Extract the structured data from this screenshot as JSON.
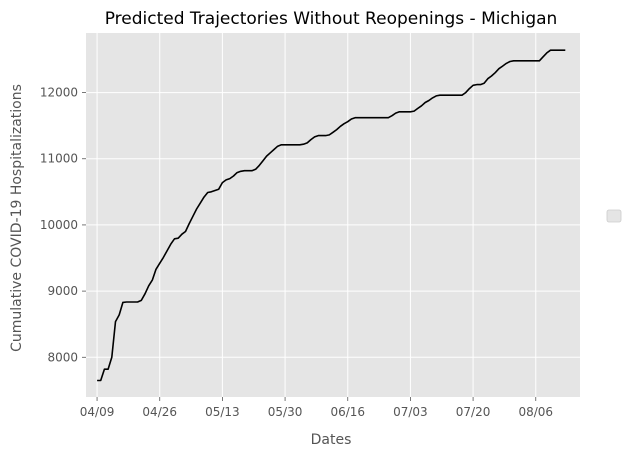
{
  "chart_data": {
    "type": "line",
    "title": "Predicted Trajectories Without Reopenings - Michigan",
    "xlabel": "Dates",
    "ylabel": "Cumulative COVID-19 Hospitalizations",
    "x_start": "2020-04-09",
    "x_ticks": [
      "04/09",
      "04/26",
      "05/13",
      "05/30",
      "06/16",
      "07/03",
      "07/20",
      "08/06"
    ],
    "xlim": [
      "2020-04-06",
      "2020-08-18"
    ],
    "y_ticks": [
      "8000",
      "9000",
      "10000",
      "11000",
      "12000"
    ],
    "ylim": [
      7400,
      12900
    ],
    "grid": true,
    "legend": "right, empty",
    "colors": {
      "background": "#e5e5e5",
      "grid": "#ffffff",
      "line": "#000000"
    },
    "series": [
      {
        "points": [
          [
            "2020-04-09",
            7650
          ],
          [
            "2020-04-10",
            7650
          ],
          [
            "2020-04-11",
            7820
          ],
          [
            "2020-04-12",
            7820
          ],
          [
            "2020-04-13",
            8000
          ],
          [
            "2020-04-14",
            8540
          ],
          [
            "2020-04-15",
            8640
          ],
          [
            "2020-04-16",
            8830
          ],
          [
            "2020-04-17",
            8835
          ],
          [
            "2020-04-18",
            8835
          ],
          [
            "2020-04-19",
            8835
          ],
          [
            "2020-04-20",
            8835
          ],
          [
            "2020-04-21",
            8860
          ],
          [
            "2020-04-22",
            8960
          ],
          [
            "2020-04-23",
            9080
          ],
          [
            "2020-04-24",
            9170
          ],
          [
            "2020-04-25",
            9330
          ],
          [
            "2020-04-26",
            9420
          ],
          [
            "2020-04-27",
            9510
          ],
          [
            "2020-04-28",
            9610
          ],
          [
            "2020-04-29",
            9710
          ],
          [
            "2020-04-30",
            9790
          ],
          [
            "2020-05-01",
            9800
          ],
          [
            "2020-05-02",
            9860
          ],
          [
            "2020-05-03",
            9900
          ],
          [
            "2020-05-04",
            10020
          ],
          [
            "2020-05-05",
            10130
          ],
          [
            "2020-05-06",
            10240
          ],
          [
            "2020-05-07",
            10330
          ],
          [
            "2020-05-08",
            10420
          ],
          [
            "2020-05-09",
            10490
          ],
          [
            "2020-05-10",
            10500
          ],
          [
            "2020-05-11",
            10520
          ],
          [
            "2020-05-12",
            10540
          ],
          [
            "2020-05-13",
            10640
          ],
          [
            "2020-05-14",
            10680
          ],
          [
            "2020-05-15",
            10700
          ],
          [
            "2020-05-16",
            10740
          ],
          [
            "2020-05-17",
            10790
          ],
          [
            "2020-05-18",
            10810
          ],
          [
            "2020-05-19",
            10820
          ],
          [
            "2020-05-20",
            10820
          ],
          [
            "2020-05-21",
            10820
          ],
          [
            "2020-05-22",
            10840
          ],
          [
            "2020-05-23",
            10900
          ],
          [
            "2020-05-24",
            10970
          ],
          [
            "2020-05-25",
            11040
          ],
          [
            "2020-05-26",
            11090
          ],
          [
            "2020-05-27",
            11140
          ],
          [
            "2020-05-28",
            11190
          ],
          [
            "2020-05-29",
            11210
          ],
          [
            "2020-05-30",
            11210
          ],
          [
            "2020-05-31",
            11210
          ],
          [
            "2020-06-01",
            11210
          ],
          [
            "2020-06-02",
            11210
          ],
          [
            "2020-06-03",
            11210
          ],
          [
            "2020-06-04",
            11220
          ],
          [
            "2020-06-05",
            11240
          ],
          [
            "2020-06-06",
            11290
          ],
          [
            "2020-06-07",
            11330
          ],
          [
            "2020-06-08",
            11350
          ],
          [
            "2020-06-09",
            11350
          ],
          [
            "2020-06-10",
            11350
          ],
          [
            "2020-06-11",
            11360
          ],
          [
            "2020-06-12",
            11400
          ],
          [
            "2020-06-13",
            11440
          ],
          [
            "2020-06-14",
            11490
          ],
          [
            "2020-06-15",
            11530
          ],
          [
            "2020-06-16",
            11560
          ],
          [
            "2020-06-17",
            11600
          ],
          [
            "2020-06-18",
            11620
          ],
          [
            "2020-06-19",
            11620
          ],
          [
            "2020-06-20",
            11620
          ],
          [
            "2020-06-21",
            11620
          ],
          [
            "2020-06-22",
            11620
          ],
          [
            "2020-06-23",
            11620
          ],
          [
            "2020-06-24",
            11620
          ],
          [
            "2020-06-25",
            11620
          ],
          [
            "2020-06-26",
            11620
          ],
          [
            "2020-06-27",
            11620
          ],
          [
            "2020-06-28",
            11650
          ],
          [
            "2020-06-29",
            11690
          ],
          [
            "2020-06-30",
            11710
          ],
          [
            "2020-07-01",
            11710
          ],
          [
            "2020-07-02",
            11710
          ],
          [
            "2020-07-03",
            11710
          ],
          [
            "2020-07-04",
            11720
          ],
          [
            "2020-07-05",
            11760
          ],
          [
            "2020-07-06",
            11800
          ],
          [
            "2020-07-07",
            11850
          ],
          [
            "2020-07-08",
            11880
          ],
          [
            "2020-07-09",
            11920
          ],
          [
            "2020-07-10",
            11950
          ],
          [
            "2020-07-11",
            11960
          ],
          [
            "2020-07-12",
            11960
          ],
          [
            "2020-07-13",
            11960
          ],
          [
            "2020-07-14",
            11960
          ],
          [
            "2020-07-15",
            11960
          ],
          [
            "2020-07-16",
            11960
          ],
          [
            "2020-07-17",
            11960
          ],
          [
            "2020-07-18",
            12000
          ],
          [
            "2020-07-19",
            12060
          ],
          [
            "2020-07-20",
            12110
          ],
          [
            "2020-07-21",
            12120
          ],
          [
            "2020-07-22",
            12120
          ],
          [
            "2020-07-23",
            12140
          ],
          [
            "2020-07-24",
            12210
          ],
          [
            "2020-07-25",
            12250
          ],
          [
            "2020-07-26",
            12300
          ],
          [
            "2020-07-27",
            12360
          ],
          [
            "2020-07-28",
            12400
          ],
          [
            "2020-07-29",
            12440
          ],
          [
            "2020-07-30",
            12470
          ],
          [
            "2020-07-31",
            12480
          ],
          [
            "2020-08-01",
            12480
          ],
          [
            "2020-08-02",
            12480
          ],
          [
            "2020-08-03",
            12480
          ],
          [
            "2020-08-04",
            12480
          ],
          [
            "2020-08-05",
            12480
          ],
          [
            "2020-08-06",
            12480
          ],
          [
            "2020-08-07",
            12480
          ],
          [
            "2020-08-08",
            12540
          ],
          [
            "2020-08-09",
            12600
          ],
          [
            "2020-08-10",
            12640
          ],
          [
            "2020-08-11",
            12640
          ],
          [
            "2020-08-12",
            12640
          ],
          [
            "2020-08-13",
            12640
          ],
          [
            "2020-08-14",
            12640
          ]
        ]
      }
    ]
  }
}
